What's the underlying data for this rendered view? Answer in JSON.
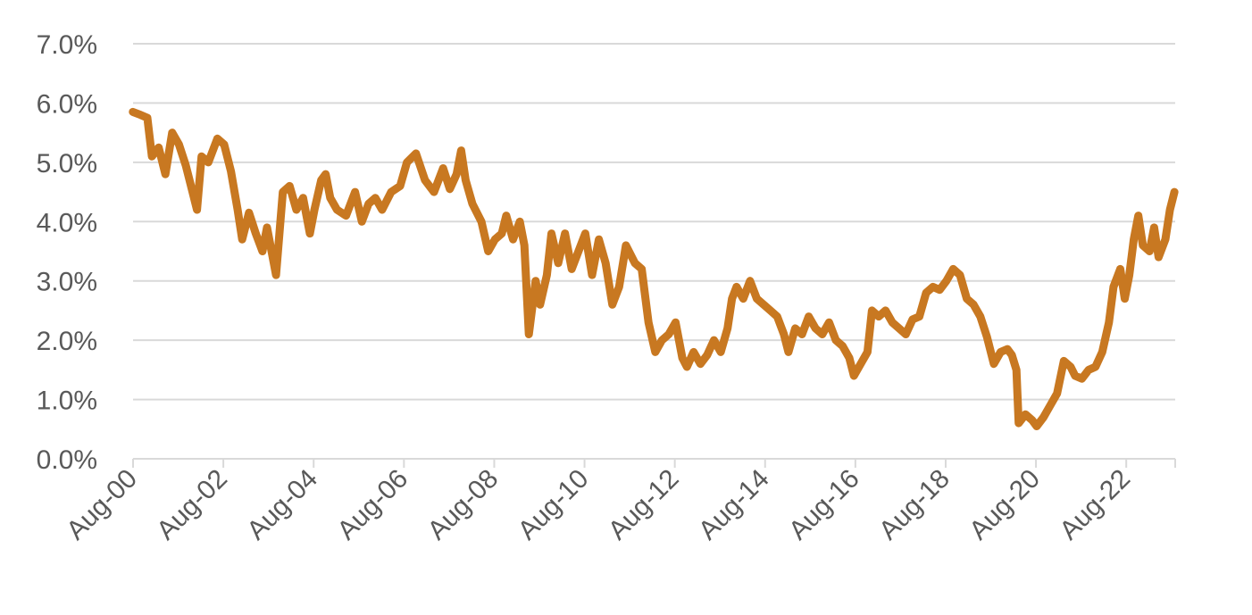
{
  "chart_data": {
    "type": "line",
    "title": "",
    "xlabel": "",
    "ylabel": "",
    "ylim": [
      0.0,
      7.0
    ],
    "y_ticks": [
      "0.0%",
      "1.0%",
      "2.0%",
      "3.0%",
      "4.0%",
      "5.0%",
      "6.0%",
      "7.0%"
    ],
    "x_ticks": [
      "Aug-00",
      "Aug-02",
      "Aug-04",
      "Aug-06",
      "Aug-08",
      "Aug-10",
      "Aug-12",
      "Aug-14",
      "Aug-16",
      "Aug-18",
      "Aug-20",
      "Aug-22"
    ],
    "x_range": [
      2000.583,
      2023.667
    ],
    "grid": true,
    "legend": "none",
    "series": [
      {
        "color": "#C87821",
        "points": [
          [
            2000.58,
            5.85
          ],
          [
            2000.75,
            5.8
          ],
          [
            2000.9,
            5.75
          ],
          [
            2001.0,
            5.1
          ],
          [
            2001.15,
            5.25
          ],
          [
            2001.3,
            4.8
          ],
          [
            2001.45,
            5.5
          ],
          [
            2001.6,
            5.3
          ],
          [
            2001.75,
            4.95
          ],
          [
            2001.9,
            4.5
          ],
          [
            2002.0,
            4.2
          ],
          [
            2002.1,
            5.1
          ],
          [
            2002.25,
            5.0
          ],
          [
            2002.45,
            5.4
          ],
          [
            2002.6,
            5.3
          ],
          [
            2002.75,
            4.85
          ],
          [
            2002.9,
            4.2
          ],
          [
            2003.0,
            3.7
          ],
          [
            2003.15,
            4.15
          ],
          [
            2003.3,
            3.8
          ],
          [
            2003.45,
            3.5
          ],
          [
            2003.55,
            3.9
          ],
          [
            2003.7,
            3.3
          ],
          [
            2003.75,
            3.1
          ],
          [
            2003.9,
            4.5
          ],
          [
            2004.05,
            4.6
          ],
          [
            2004.2,
            4.2
          ],
          [
            2004.35,
            4.4
          ],
          [
            2004.5,
            3.8
          ],
          [
            2004.6,
            4.2
          ],
          [
            2004.75,
            4.7
          ],
          [
            2004.85,
            4.8
          ],
          [
            2004.95,
            4.4
          ],
          [
            2005.1,
            4.2
          ],
          [
            2005.3,
            4.1
          ],
          [
            2005.5,
            4.5
          ],
          [
            2005.65,
            4.0
          ],
          [
            2005.8,
            4.3
          ],
          [
            2005.95,
            4.4
          ],
          [
            2006.1,
            4.2
          ],
          [
            2006.3,
            4.5
          ],
          [
            2006.5,
            4.6
          ],
          [
            2006.65,
            5.0
          ],
          [
            2006.85,
            5.15
          ],
          [
            2007.05,
            4.7
          ],
          [
            2007.25,
            4.5
          ],
          [
            2007.45,
            4.9
          ],
          [
            2007.6,
            4.55
          ],
          [
            2007.75,
            4.8
          ],
          [
            2007.85,
            5.2
          ],
          [
            2007.95,
            4.7
          ],
          [
            2008.1,
            4.3
          ],
          [
            2008.3,
            4.0
          ],
          [
            2008.45,
            3.5
          ],
          [
            2008.6,
            3.7
          ],
          [
            2008.75,
            3.8
          ],
          [
            2008.85,
            4.1
          ],
          [
            2009.0,
            3.7
          ],
          [
            2009.15,
            4.0
          ],
          [
            2009.25,
            3.6
          ],
          [
            2009.35,
            2.1
          ],
          [
            2009.5,
            3.0
          ],
          [
            2009.6,
            2.6
          ],
          [
            2009.75,
            3.1
          ],
          [
            2009.85,
            3.8
          ],
          [
            2010.0,
            3.3
          ],
          [
            2010.15,
            3.8
          ],
          [
            2010.3,
            3.2
          ],
          [
            2010.45,
            3.5
          ],
          [
            2010.6,
            3.8
          ],
          [
            2010.75,
            3.1
          ],
          [
            2010.9,
            3.7
          ],
          [
            2011.05,
            3.3
          ],
          [
            2011.2,
            2.6
          ],
          [
            2011.35,
            2.9
          ],
          [
            2011.5,
            3.6
          ],
          [
            2011.7,
            3.3
          ],
          [
            2011.85,
            3.2
          ],
          [
            2012.0,
            2.3
          ],
          [
            2012.15,
            1.8
          ],
          [
            2012.3,
            2.0
          ],
          [
            2012.45,
            2.1
          ],
          [
            2012.6,
            2.3
          ],
          [
            2012.75,
            1.7
          ],
          [
            2012.85,
            1.55
          ],
          [
            2013.0,
            1.8
          ],
          [
            2013.15,
            1.6
          ],
          [
            2013.3,
            1.75
          ],
          [
            2013.45,
            2.0
          ],
          [
            2013.6,
            1.8
          ],
          [
            2013.75,
            2.2
          ],
          [
            2013.85,
            2.7
          ],
          [
            2013.95,
            2.9
          ],
          [
            2014.1,
            2.7
          ],
          [
            2014.25,
            3.0
          ],
          [
            2014.4,
            2.7
          ],
          [
            2014.55,
            2.6
          ],
          [
            2014.7,
            2.5
          ],
          [
            2014.85,
            2.4
          ],
          [
            2015.0,
            2.1
          ],
          [
            2015.1,
            1.8
          ],
          [
            2015.25,
            2.2
          ],
          [
            2015.4,
            2.1
          ],
          [
            2015.55,
            2.4
          ],
          [
            2015.7,
            2.2
          ],
          [
            2015.85,
            2.1
          ],
          [
            2016.0,
            2.3
          ],
          [
            2016.15,
            2.0
          ],
          [
            2016.3,
            1.9
          ],
          [
            2016.45,
            1.7
          ],
          [
            2016.55,
            1.4
          ],
          [
            2016.7,
            1.6
          ],
          [
            2016.85,
            1.8
          ],
          [
            2016.95,
            2.5
          ],
          [
            2017.1,
            2.4
          ],
          [
            2017.25,
            2.5
          ],
          [
            2017.4,
            2.3
          ],
          [
            2017.55,
            2.2
          ],
          [
            2017.7,
            2.1
          ],
          [
            2017.85,
            2.35
          ],
          [
            2018.0,
            2.4
          ],
          [
            2018.15,
            2.8
          ],
          [
            2018.3,
            2.9
          ],
          [
            2018.45,
            2.85
          ],
          [
            2018.6,
            3.0
          ],
          [
            2018.75,
            3.2
          ],
          [
            2018.9,
            3.1
          ],
          [
            2019.05,
            2.7
          ],
          [
            2019.2,
            2.6
          ],
          [
            2019.35,
            2.4
          ],
          [
            2019.5,
            2.05
          ],
          [
            2019.65,
            1.6
          ],
          [
            2019.8,
            1.8
          ],
          [
            2019.95,
            1.85
          ],
          [
            2020.05,
            1.75
          ],
          [
            2020.15,
            1.5
          ],
          [
            2020.2,
            0.6
          ],
          [
            2020.35,
            0.75
          ],
          [
            2020.5,
            0.65
          ],
          [
            2020.6,
            0.55
          ],
          [
            2020.75,
            0.7
          ],
          [
            2020.9,
            0.9
          ],
          [
            2021.05,
            1.1
          ],
          [
            2021.2,
            1.65
          ],
          [
            2021.35,
            1.55
          ],
          [
            2021.45,
            1.4
          ],
          [
            2021.6,
            1.35
          ],
          [
            2021.75,
            1.5
          ],
          [
            2021.9,
            1.55
          ],
          [
            2022.05,
            1.8
          ],
          [
            2022.2,
            2.3
          ],
          [
            2022.3,
            2.9
          ],
          [
            2022.45,
            3.2
          ],
          [
            2022.55,
            2.7
          ],
          [
            2022.65,
            3.1
          ],
          [
            2022.75,
            3.7
          ],
          [
            2022.85,
            4.1
          ],
          [
            2022.95,
            3.6
          ],
          [
            2023.1,
            3.5
          ],
          [
            2023.2,
            3.9
          ],
          [
            2023.3,
            3.4
          ],
          [
            2023.45,
            3.7
          ],
          [
            2023.55,
            4.2
          ],
          [
            2023.65,
            4.5
          ]
        ]
      }
    ]
  }
}
